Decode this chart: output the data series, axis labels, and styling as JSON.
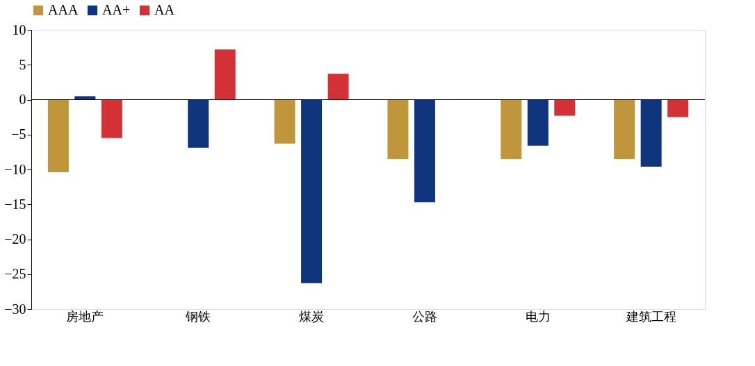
{
  "chart_data": {
    "type": "bar",
    "categories": [
      "房地产",
      "钢铁",
      "煤炭",
      "公路",
      "电力",
      "建筑工程"
    ],
    "series": [
      {
        "name": "AAA",
        "color": "#c0963c",
        "values": [
          -10.4,
          null,
          -6.3,
          -8.5,
          -8.5,
          -8.5
        ]
      },
      {
        "name": "AA+",
        "color": "#10357f",
        "values": [
          0.5,
          -6.9,
          -26.3,
          -14.7,
          -6.6,
          -9.6
        ]
      },
      {
        "name": "AA",
        "color": "#d23236",
        "values": [
          -5.5,
          7.2,
          3.7,
          null,
          -2.3,
          -2.5
        ]
      }
    ],
    "ylim": [
      -30,
      10
    ],
    "yticks": [
      -30,
      -25,
      -20,
      -15,
      -10,
      -5,
      0,
      5,
      10
    ],
    "ref_lines": [
      {
        "axis": "y",
        "value": 0
      }
    ],
    "grid": false,
    "legend": "top"
  }
}
